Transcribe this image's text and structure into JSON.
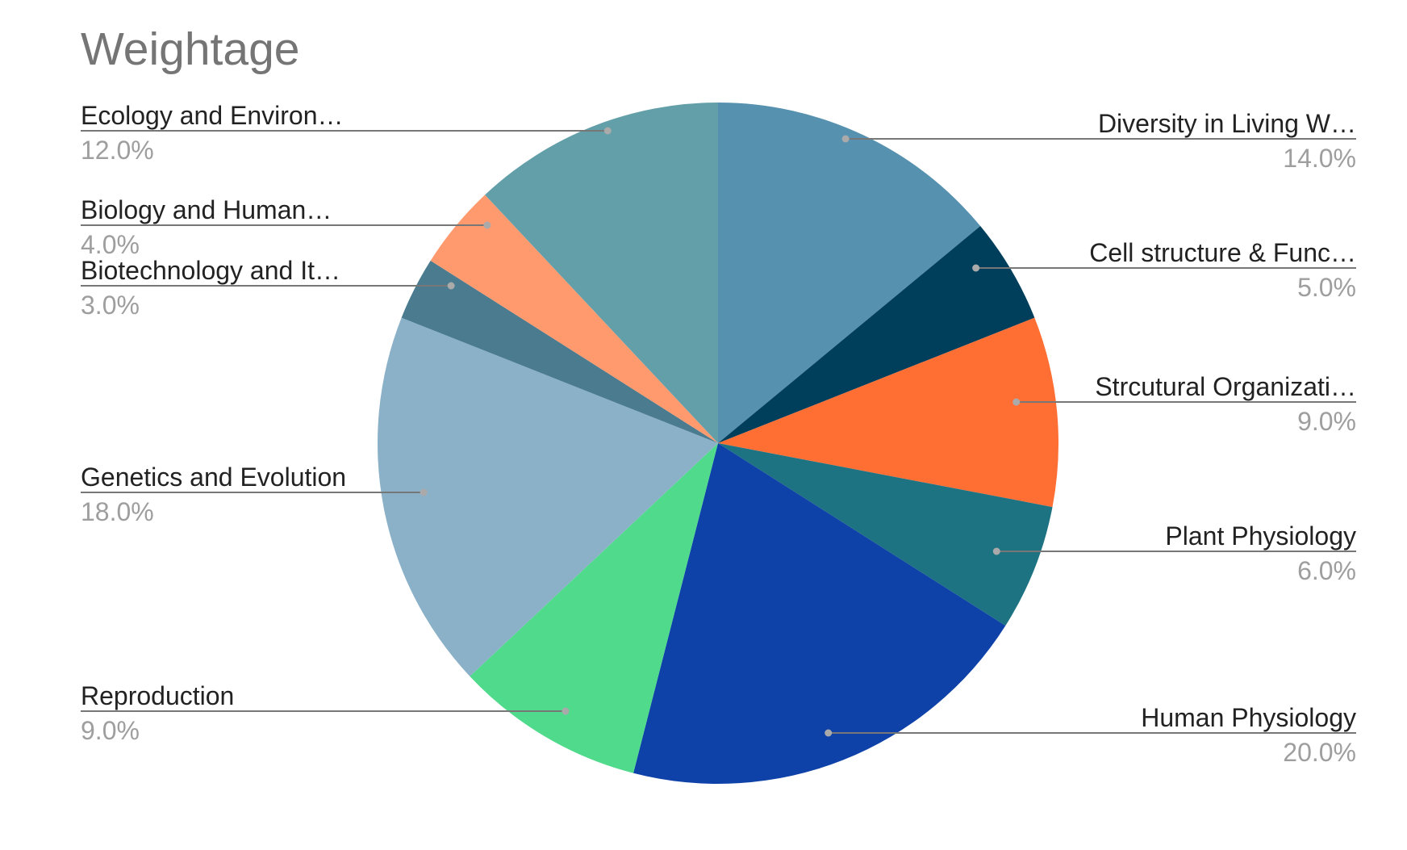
{
  "chart_data": {
    "type": "pie",
    "title": "Weightage",
    "slices": [
      {
        "label": "Diversity in Living W…",
        "value": 14.0,
        "pct_label": "14.0%",
        "color": "#5791b0"
      },
      {
        "label": "Cell structure & Func…",
        "value": 5.0,
        "pct_label": "5.0%",
        "color": "#003f5c"
      },
      {
        "label": "Strcutural Organizati…",
        "value": 9.0,
        "pct_label": "9.0%",
        "color": "#ff6f34"
      },
      {
        "label": "Plant Physiology",
        "value": 6.0,
        "pct_label": "6.0%",
        "color": "#1e7382"
      },
      {
        "label": "Human Physiology",
        "value": 20.0,
        "pct_label": "20.0%",
        "color": "#0f42a8"
      },
      {
        "label": "Reproduction",
        "value": 9.0,
        "pct_label": "9.0%",
        "color": "#50da8c"
      },
      {
        "label": "Genetics and Evolution",
        "value": 18.0,
        "pct_label": "18.0%",
        "color": "#8bb1c8"
      },
      {
        "label": "Biotechnology and It…",
        "value": 3.0,
        "pct_label": "3.0%",
        "color": "#4a7b8f"
      },
      {
        "label": "Biology and Human…",
        "value": 4.0,
        "pct_label": "4.0%",
        "color": "#ff9a6f"
      },
      {
        "label": "Ecology and Environ…",
        "value": 12.0,
        "pct_label": "12.0%",
        "color": "#629fa9"
      }
    ]
  }
}
